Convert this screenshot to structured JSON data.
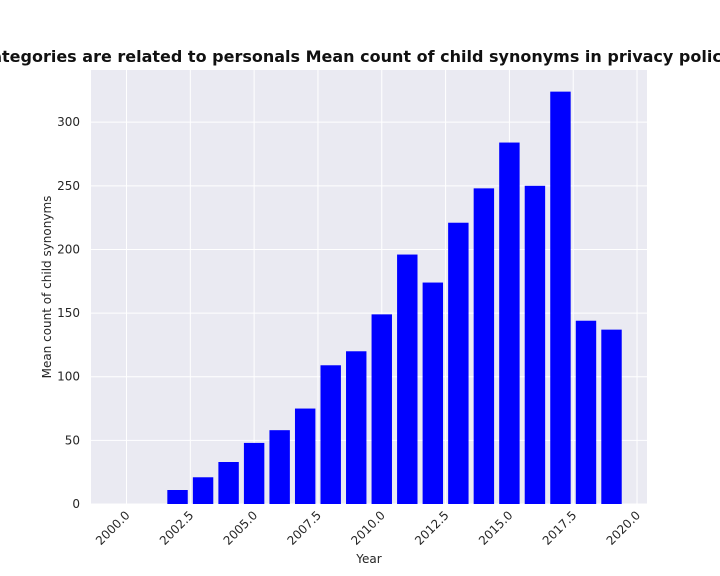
{
  "chart_data": {
    "type": "bar",
    "title": "when categories are related to personals Mean count of child synonyms in privacy policies by Y",
    "x_label": "Year",
    "y_label": "Mean count of child synonyms",
    "x": [
      2000,
      2001,
      2002,
      2003,
      2004,
      2005,
      2006,
      2007,
      2008,
      2009,
      2010,
      2011,
      2012,
      2013,
      2014,
      2015,
      2016,
      2017,
      2018,
      2019
    ],
    "values": [
      0,
      0,
      11,
      21,
      33,
      48,
      58,
      75,
      109,
      120,
      149,
      196,
      174,
      221,
      248,
      284,
      250,
      324,
      144,
      137
    ],
    "color": "#0000ff",
    "xlim": [
      1998.61,
      2020.39
    ],
    "xticks": [
      {
        "value": 2000,
        "label": "2000.0"
      },
      {
        "value": 2002.5,
        "label": "2002.5"
      },
      {
        "value": 2005,
        "label": "2005.0"
      },
      {
        "value": 2007.5,
        "label": "2007.5"
      },
      {
        "value": 2010,
        "label": "2010.0"
      },
      {
        "value": 2012.5,
        "label": "2012.5"
      },
      {
        "value": 2015,
        "label": "2015.0"
      },
      {
        "value": 2017.5,
        "label": "2017.5"
      },
      {
        "value": 2020,
        "label": "2020.0"
      }
    ],
    "ylim": [
      0,
      341
    ],
    "yticks": [
      0,
      50,
      100,
      150,
      200,
      250,
      300
    ],
    "grid": true
  }
}
